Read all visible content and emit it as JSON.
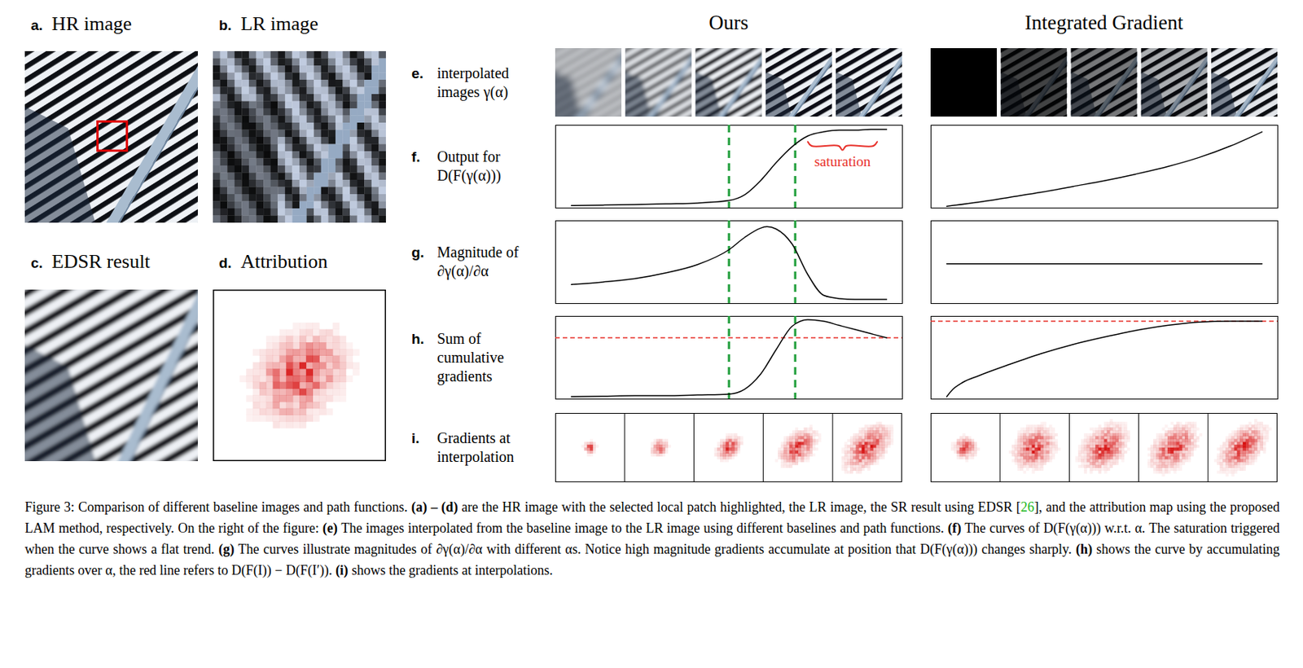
{
  "figure": {
    "panels": [
      {
        "letter": "a.",
        "title": "HR image"
      },
      {
        "letter": "b.",
        "title": "LR image"
      },
      {
        "letter": "c.",
        "title": "EDSR result"
      },
      {
        "letter": "d.",
        "title": "Attribution"
      }
    ],
    "columns": [
      "Ours",
      "Integrated Gradient"
    ],
    "rows": [
      {
        "letter": "e.",
        "label": "interpolated images γ(α)"
      },
      {
        "letter": "f.",
        "label": "Output for D(F(γ(α)))"
      },
      {
        "letter": "g.",
        "label": "Magnitude of ∂γ(α)/∂α"
      },
      {
        "letter": "h.",
        "label": "Sum of cumulative gradients"
      },
      {
        "letter": "i.",
        "label": "Gradients at interpolation"
      }
    ],
    "caption": [
      {
        "text": "Figure 3: Comparison of different baseline images and path functions. "
      },
      {
        "text": "(a) – (d)",
        "bold": true
      },
      {
        "text": " are the HR image with the selected local patch highlighted, the LR image, the SR result using EDSR ["
      },
      {
        "text": "26",
        "color": "#22b822"
      },
      {
        "text": "], and the attribution map using the proposed LAM method, respectively. On the right of the figure: "
      },
      {
        "text": "(e)",
        "bold": true
      },
      {
        "text": " The images interpolated from the baseline image to the LR image using different baselines and path functions. "
      },
      {
        "text": "(f)",
        "bold": true
      },
      {
        "text": " The curves of D(F(γ(α))) w.r.t. α. The saturation triggered when the curve shows a flat trend. "
      },
      {
        "text": "(g)",
        "bold": true
      },
      {
        "text": " The curves illustrate magnitudes of ∂γ(α)/∂α with different αs. Notice high magnitude gradients accumulate at position that D(F(γ(α))) changes sharply. "
      },
      {
        "text": "(h)",
        "bold": true
      },
      {
        "text": " shows the curve by accumulating gradients over α, the red line refers to D(F(I)) − D(F(I′)). "
      },
      {
        "text": "(i)",
        "bold": true
      },
      {
        "text": " shows the gradients at interpolations."
      }
    ]
  },
  "chart_data": [
    {
      "type": "line",
      "x": [
        0,
        0.1,
        0.2,
        0.3,
        0.4,
        0.5,
        0.55,
        0.6,
        0.65,
        0.7,
        0.75,
        0.8,
        0.85,
        0.9,
        0.95,
        1
      ],
      "series": [
        {
          "color": "#000000",
          "values": [
            0.03,
            0.035,
            0.04,
            0.05,
            0.06,
            0.09,
            0.16,
            0.33,
            0.55,
            0.74,
            0.87,
            0.92,
            0.94,
            0.94,
            0.95,
            0.95
          ]
        }
      ],
      "xlim": [
        -0.05,
        1.05
      ],
      "ylim": [
        0,
        1
      ],
      "xticks": [],
      "yticks": [],
      "tick_labels": false,
      "vlines": [
        0.5,
        0.71
      ],
      "vline_color": "#1f9e3a",
      "annotations": [
        {
          "text": "saturation",
          "x": 0.86,
          "y": 0.56,
          "color": "#e8302a",
          "bracket": [
            0.75,
            0.97
          ],
          "bracket_y": 0.8
        }
      ]
    },
    {
      "type": "line",
      "x": [
        0,
        0.1,
        0.2,
        0.3,
        0.4,
        0.5,
        0.6,
        0.7,
        0.8,
        0.9,
        1
      ],
      "series": [
        {
          "color": "#000000",
          "values": [
            0.02,
            0.07,
            0.13,
            0.19,
            0.26,
            0.33,
            0.41,
            0.5,
            0.61,
            0.75,
            0.92
          ]
        }
      ],
      "xlim": [
        -0.05,
        1.05
      ],
      "ylim": [
        0,
        1
      ],
      "xticks": [],
      "yticks": [],
      "tick_labels": false
    },
    {
      "type": "line",
      "x": [
        0,
        0.1,
        0.2,
        0.3,
        0.4,
        0.5,
        0.55,
        0.6,
        0.62,
        0.65,
        0.7,
        0.75,
        0.8,
        0.85,
        0.9,
        1
      ],
      "series": [
        {
          "color": "#000000",
          "values": [
            0.23,
            0.26,
            0.3,
            0.37,
            0.47,
            0.65,
            0.8,
            0.91,
            0.93,
            0.9,
            0.72,
            0.35,
            0.1,
            0.06,
            0.05,
            0.05
          ]
        }
      ],
      "xlim": [
        -0.05,
        1.05
      ],
      "ylim": [
        0,
        1
      ],
      "xticks": [],
      "yticks": [],
      "tick_labels": false,
      "vlines": [
        0.5,
        0.71
      ],
      "vline_color": "#1f9e3a"
    },
    {
      "type": "line",
      "x": [
        0,
        1
      ],
      "series": [
        {
          "color": "#000000",
          "values": [
            0.48,
            0.48
          ]
        }
      ],
      "xlim": [
        -0.05,
        1.05
      ],
      "ylim": [
        0,
        1
      ],
      "xticks": [],
      "yticks": [],
      "tick_labels": false
    },
    {
      "type": "line",
      "x": [
        0,
        0.1,
        0.2,
        0.3,
        0.4,
        0.5,
        0.55,
        0.6,
        0.65,
        0.7,
        0.75,
        0.8,
        0.85,
        0.9,
        0.95,
        1
      ],
      "series": [
        {
          "color": "#000000",
          "values": [
            0.03,
            0.035,
            0.04,
            0.04,
            0.05,
            0.06,
            0.12,
            0.3,
            0.6,
            0.88,
            0.96,
            0.94,
            0.89,
            0.84,
            0.79,
            0.74
          ]
        }
      ],
      "xlim": [
        -0.05,
        1.05
      ],
      "ylim": [
        0,
        1
      ],
      "xticks": [],
      "yticks": [],
      "tick_labels": false,
      "vlines": [
        0.5,
        0.71
      ],
      "vline_color": "#1f9e3a",
      "reference": 0.74,
      "reference_color": "#e8302a"
    },
    {
      "type": "line",
      "x": [
        0,
        0.02,
        0.05,
        0.1,
        0.2,
        0.3,
        0.4,
        0.5,
        0.6,
        0.7,
        0.8,
        0.9,
        1
      ],
      "series": [
        {
          "color": "#000000",
          "values": [
            0.03,
            0.12,
            0.2,
            0.28,
            0.42,
            0.55,
            0.66,
            0.75,
            0.83,
            0.89,
            0.93,
            0.94,
            0.94
          ]
        }
      ],
      "xlim": [
        -0.05,
        1.05
      ],
      "ylim": [
        0,
        1
      ],
      "xticks": [],
      "yticks": [],
      "tick_labels": false,
      "reference": 0.94,
      "reference_color": "#e8302a"
    }
  ]
}
